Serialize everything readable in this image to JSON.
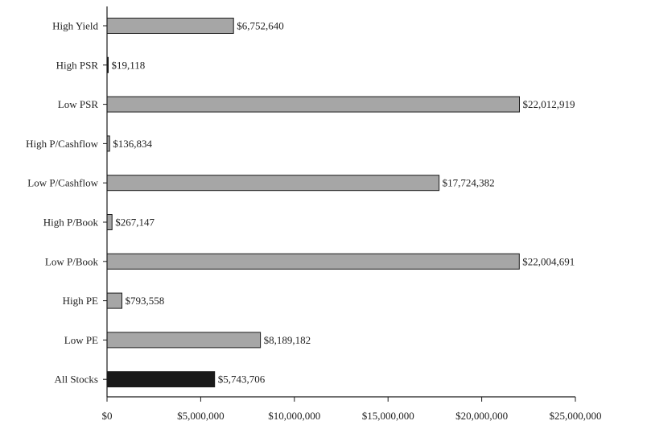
{
  "chart_data": {
    "type": "bar",
    "orientation": "horizontal",
    "categories": [
      "High Yield",
      "High PSR",
      "Low PSR",
      "High P/Cashflow",
      "Low P/Cashflow",
      "High P/Book",
      "Low P/Book",
      "High PE",
      "Low PE",
      "All Stocks"
    ],
    "values": [
      6752640,
      19118,
      22012919,
      136834,
      17724382,
      267147,
      22004691,
      793558,
      8189182,
      5743706
    ],
    "value_labels": [
      "$6,752,640",
      "$19,118",
      "$22,012,919",
      "$136,834",
      "$17,724,382",
      "$267,147",
      "$22,004,691",
      "$793,558",
      "$8,189,182",
      "$5,743,706"
    ],
    "bar_colors": [
      "#a6a6a6",
      "#1a1a1a",
      "#a6a6a6",
      "#a6a6a6",
      "#a6a6a6",
      "#a6a6a6",
      "#a6a6a6",
      "#a6a6a6",
      "#a6a6a6",
      "#1a1a1a"
    ],
    "xlim": [
      0,
      25000000
    ],
    "x_ticks": [
      0,
      5000000,
      10000000,
      15000000,
      20000000,
      25000000
    ],
    "x_tick_labels": [
      "$0",
      "$5,000,000",
      "$10,000,000",
      "$15,000,000",
      "$20,000,000",
      "$25,000,000"
    ],
    "title": "",
    "xlabel": "",
    "ylabel": "",
    "grid": false,
    "legend": "none"
  }
}
